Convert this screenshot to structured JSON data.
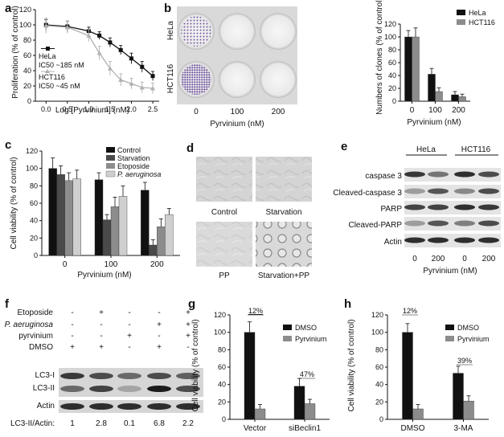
{
  "panels": {
    "a": {
      "letter": "a",
      "xlabel": "Log [Pyrvinium] (nM)",
      "ylabel": "Proliferation (% of control)",
      "legend": [
        {
          "name": "HeLa",
          "ic50": "IC50 ~185 nM"
        },
        {
          "name": "HCT116",
          "ic50": "IC50 ~45 nM"
        }
      ]
    },
    "b": {
      "letter": "b",
      "row_labels": [
        "HeLa",
        "HCT116"
      ],
      "col_labels": [
        "0",
        "100",
        "200"
      ],
      "xlabel": "Pyrvinium (nM)",
      "ylabel": "Numbers of clones (% of control)",
      "legend": [
        "HeLa",
        "HCT116"
      ]
    },
    "c": {
      "letter": "c",
      "xlabel": "Pyrvinium (nM)",
      "ylabel": "Cell viability (% of control)",
      "legend": [
        "Control",
        "Starvation",
        "Etoposide",
        "P. aeruginosa"
      ]
    },
    "d": {
      "letter": "d",
      "labels": [
        "Control",
        "Starvation",
        "PP",
        "Starvation+PP"
      ]
    },
    "e": {
      "letter": "e",
      "cell_lines": [
        "HeLa",
        "HCT116"
      ],
      "rows": [
        "caspase 3",
        "Cleaved-caspase 3",
        "PARP",
        "Cleaved-PARP",
        "Actin"
      ],
      "lanes": [
        "0",
        "200",
        "0",
        "200"
      ],
      "xlabel": "Pyrvinium (nM)"
    },
    "f": {
      "letter": "f",
      "conditions": [
        {
          "label": "Etoposide",
          "signs": [
            "-",
            "+",
            "-",
            "-",
            "+"
          ]
        },
        {
          "label": "P. aeruginosa",
          "signs": [
            "-",
            "-",
            "-",
            "+",
            "+"
          ]
        },
        {
          "label": "pyrvinium",
          "signs": [
            "-",
            "-",
            "+",
            "-",
            "+"
          ]
        },
        {
          "label": "DMSO",
          "signs": [
            "+",
            "+",
            "-",
            "+",
            "-"
          ]
        }
      ],
      "rows": [
        "LC3-I",
        "LC3-II",
        "Actin"
      ],
      "ratio_label": "LC3-II/Actin:",
      "ratios": [
        "1",
        "2.8",
        "0.1",
        "6.8",
        "2.2"
      ]
    },
    "g": {
      "letter": "g",
      "ylabel": "Cell viability (% of control)",
      "legend": [
        "DMSO",
        "Pyrvinium"
      ],
      "annotations": [
        "12%",
        "47%"
      ]
    },
    "h": {
      "letter": "h",
      "ylabel": "Cell viability (% of control)",
      "legend": [
        "DMSO",
        "Pyrvinium"
      ],
      "annotations": [
        "12%",
        "39%"
      ]
    }
  },
  "chart_data": [
    {
      "id": "a",
      "type": "line",
      "x": [
        0.0,
        0.5,
        1.0,
        1.25,
        1.5,
        1.75,
        2.0,
        2.25,
        2.5
      ],
      "series": [
        {
          "name": "HeLa",
          "values": [
            100,
            98,
            92,
            86,
            77,
            67,
            56,
            45,
            33
          ],
          "errors": [
            7,
            7,
            5,
            5,
            6,
            6,
            7,
            7,
            6
          ],
          "color": "#111111"
        },
        {
          "name": "HCT116",
          "values": [
            99,
            97,
            86,
            63,
            43,
            28,
            23,
            18,
            17
          ],
          "errors": [
            10,
            8,
            8,
            9,
            9,
            8,
            7,
            7,
            7
          ],
          "color": "#b0b0b0"
        }
      ],
      "xticks": [
        "0.0",
        "0.5",
        "1.0",
        "1.5",
        "2.0",
        "2.5"
      ],
      "yticks": [
        "0",
        "20",
        "40",
        "60",
        "80",
        "100",
        "120"
      ],
      "ylim": [
        0,
        120
      ],
      "xlim": [
        -0.25,
        2.65
      ]
    },
    {
      "id": "b",
      "type": "bar",
      "categories": [
        "0",
        "100",
        "200"
      ],
      "series": [
        {
          "name": "HeLa",
          "values": [
            100,
            42,
            10
          ],
          "errors": [
            10,
            9,
            5
          ],
          "color": "#111111"
        },
        {
          "name": "HCT116",
          "values": [
            100,
            15,
            7
          ],
          "errors": [
            14,
            6,
            4
          ],
          "color": "#8c8c8c"
        }
      ],
      "yticks": [
        "0",
        "20",
        "40",
        "60",
        "80",
        "100",
        "120"
      ],
      "ylim": [
        0,
        120
      ]
    },
    {
      "id": "c",
      "type": "bar",
      "categories": [
        "0",
        "100",
        "200"
      ],
      "series": [
        {
          "name": "Control",
          "values": [
            100,
            87,
            75
          ],
          "errors": [
            12,
            8,
            9
          ],
          "color": "#111111"
        },
        {
          "name": "Starvation",
          "values": [
            93,
            41,
            12
          ],
          "errors": [
            10,
            6,
            6
          ],
          "color": "#4a4a4a"
        },
        {
          "name": "Etoposide",
          "values": [
            86,
            56,
            33
          ],
          "errors": [
            9,
            11,
            9
          ],
          "color": "#8c8c8c"
        },
        {
          "name": "P. aeruginosa",
          "values": [
            88,
            68,
            47
          ],
          "errors": [
            10,
            12,
            7
          ],
          "color": "#cfcfcf"
        }
      ],
      "yticks": [
        "0",
        "20",
        "40",
        "60",
        "80",
        "100",
        "120"
      ],
      "ylim": [
        0,
        120
      ]
    },
    {
      "id": "g",
      "type": "bar",
      "categories": [
        "Vector",
        "siBeclin1"
      ],
      "series": [
        {
          "name": "DMSO",
          "values": [
            100,
            38
          ],
          "errors": [
            12,
            9
          ],
          "color": "#111111"
        },
        {
          "name": "Pyrvinium",
          "values": [
            12,
            18
          ],
          "errors": [
            5,
            5
          ],
          "color": "#8c8c8c"
        }
      ],
      "yticks": [
        "0",
        "20",
        "40",
        "60",
        "80",
        "100",
        "120"
      ],
      "ylim": [
        0,
        120
      ]
    },
    {
      "id": "h",
      "type": "bar",
      "categories": [
        "DMSO",
        "3-MA"
      ],
      "series": [
        {
          "name": "DMSO",
          "values": [
            100,
            53
          ],
          "errors": [
            10,
            8
          ],
          "color": "#111111"
        },
        {
          "name": "Pyrvinium",
          "values": [
            12,
            21
          ],
          "errors": [
            5,
            6
          ],
          "color": "#8c8c8c"
        }
      ],
      "yticks": [
        "0",
        "20",
        "40",
        "60",
        "80",
        "100",
        "120"
      ],
      "ylim": [
        0,
        120
      ]
    }
  ]
}
